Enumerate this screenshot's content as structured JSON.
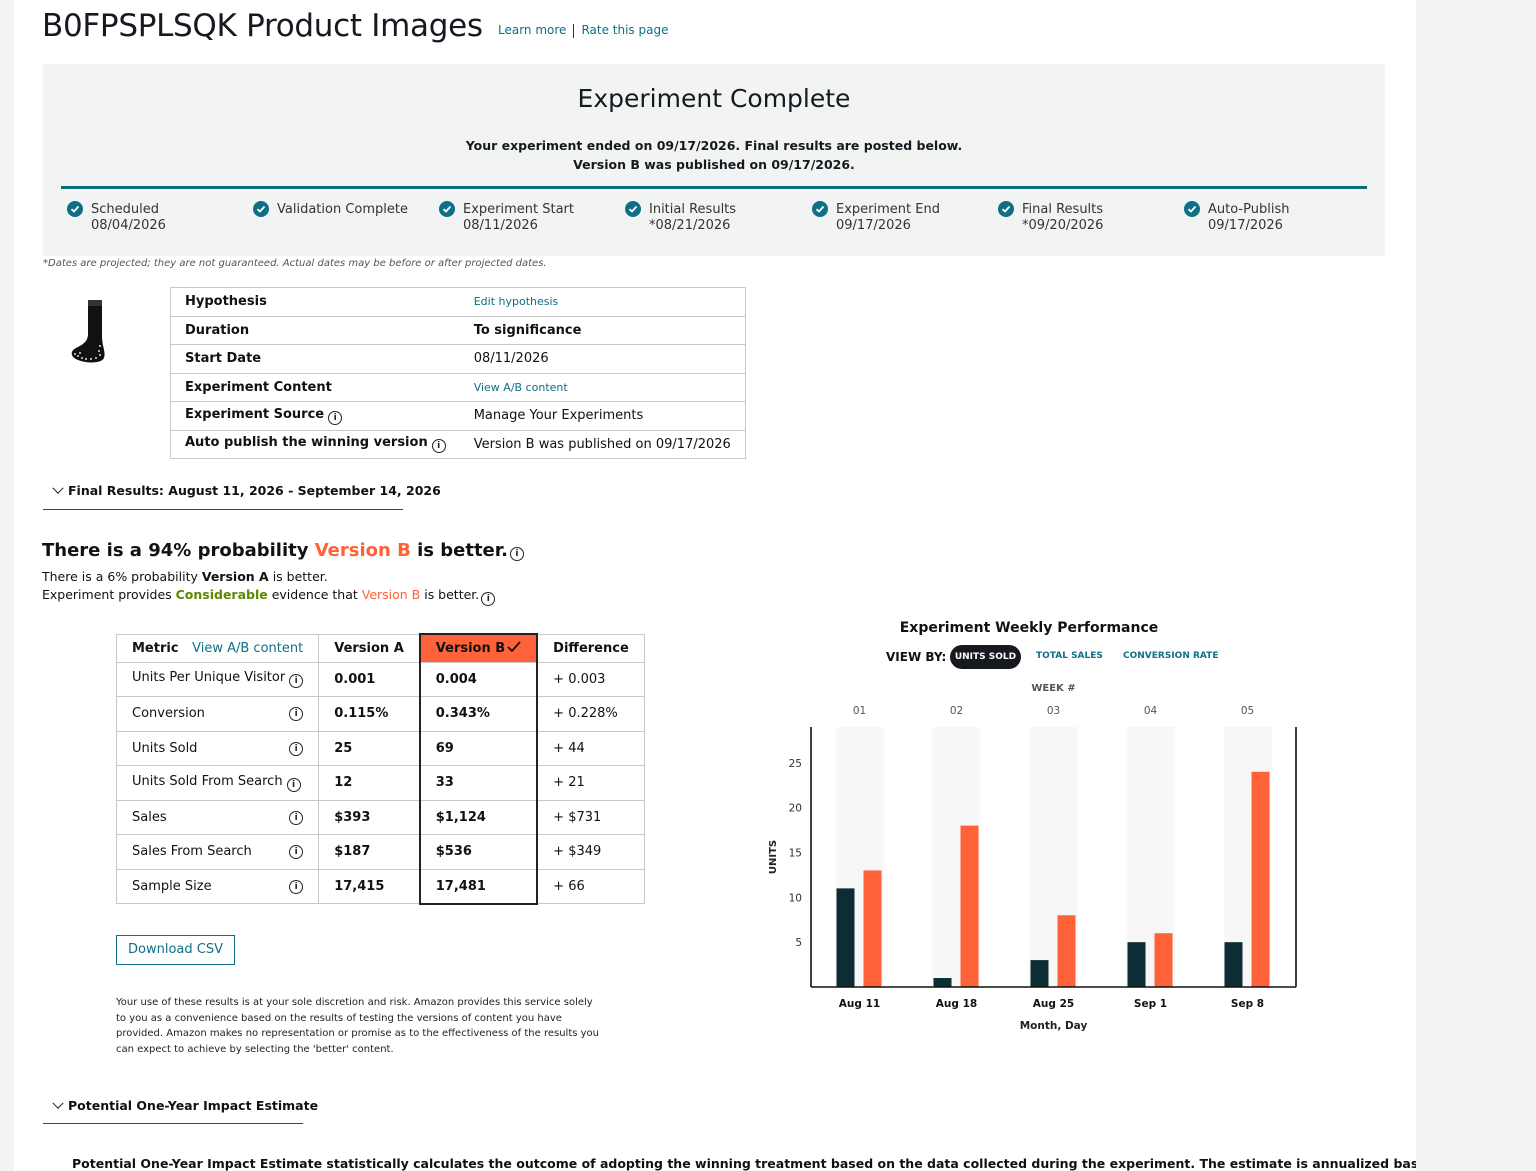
{
  "header": {
    "title": "B0FPSPLSQK Product Images",
    "learn_more": "Learn more",
    "rate_page": "Rate this page"
  },
  "status": {
    "title": "Experiment Complete",
    "line1": "Your experiment ended on 09/17/2026. Final results are posted below.",
    "line2": "Version B was published on 09/17/2026.",
    "steps": [
      {
        "label": "Scheduled",
        "date": "08/04/2026"
      },
      {
        "label": "Validation Complete",
        "date": ""
      },
      {
        "label": "Experiment Start",
        "date": "08/11/2026"
      },
      {
        "label": "Initial Results",
        "date": "*08/21/2026"
      },
      {
        "label": "Experiment End",
        "date": "09/17/2026"
      },
      {
        "label": "Final Results",
        "date": "*09/20/2026"
      },
      {
        "label": "Auto-Publish",
        "date": "09/17/2026"
      }
    ],
    "note": "*Dates are projected; they are not guaranteed. Actual dates may be before or after projected dates."
  },
  "details": {
    "hypothesis_label": "Hypothesis",
    "hypothesis_value": "Edit hypothesis",
    "duration_label": "Duration",
    "duration_value": "To significance",
    "start_label": "Start Date",
    "start_value": "08/11/2026",
    "content_label": "Experiment Content",
    "content_value": "View A/B content",
    "source_label": "Experiment Source",
    "source_value": "Manage Your Experiments",
    "autopub_label": "Auto publish the winning version",
    "autopub_value": "Version B was published on 09/17/2026"
  },
  "final_results": {
    "header": "Final Results: August 11, 2026 - September 14, 2026",
    "prob_pre": "There is a 94% probability ",
    "prob_version": "Version B",
    "prob_post": " is better.",
    "line2_pre": "There is a 6% probability ",
    "line2_version": "Version A",
    "line2_post": " is better.",
    "line3_pre": "Experiment provides ",
    "line3_strength": "Considerable",
    "line3_mid": " evidence that ",
    "line3_version": "Version B",
    "line3_post": " is better."
  },
  "metrics": {
    "headers": {
      "metric": "Metric",
      "view_link": "View A/B content",
      "version_a": "Version A",
      "version_b": "Version B",
      "difference": "Difference"
    },
    "rows": [
      {
        "name": "Units Per Unique Visitor",
        "a": "0.001",
        "b": "0.004",
        "diff": "+ 0.003"
      },
      {
        "name": "Conversion",
        "a": "0.115%",
        "b": "0.343%",
        "diff": "+ 0.228%"
      },
      {
        "name": "Units Sold",
        "a": "25",
        "b": "69",
        "diff": "+ 44"
      },
      {
        "name": "Units Sold From Search",
        "a": "12",
        "b": "33",
        "diff": "+ 21"
      },
      {
        "name": "Sales",
        "a": "$393",
        "b": "$1,124",
        "diff": "+ $731"
      },
      {
        "name": "Sales From Search",
        "a": "$187",
        "b": "$536",
        "diff": "+ $349"
      },
      {
        "name": "Sample Size",
        "a": "17,415",
        "b": "17,481",
        "diff": "+ 66"
      }
    ]
  },
  "download_csv": "Download CSV",
  "disclaimer": "Your use of these results is at your sole discretion and risk. Amazon provides this service solely to you as a convenience based on the results of testing the versions of content you have provided. Amazon makes no representation or promise as to the effectiveness of the results you can expect to achieve by selecting the 'better' content.",
  "impact": {
    "header": "Potential One-Year Impact Estimate",
    "text": "Potential One-Year Impact Estimate statistically calculates the outcome of adopting the winning treatment based on the data collected during the experiment. The estimate is annualized based on the"
  },
  "chart_header": {
    "title": "Experiment Weekly Performance",
    "view_by": "VIEW BY:",
    "options": [
      "UNITS SOLD",
      "TOTAL SALES",
      "CONVERSION RATE"
    ]
  },
  "colors": {
    "version_a": "#0b2d33",
    "version_b": "#ff6138",
    "accent": "#0f6f86"
  },
  "chart_data": {
    "type": "bar",
    "top_axis_label": "WEEK #",
    "weeks": [
      "01",
      "02",
      "03",
      "04",
      "05"
    ],
    "categories": [
      "Aug 11",
      "Aug 18",
      "Aug 25",
      "Sep 1",
      "Sep 8"
    ],
    "series": [
      {
        "values": [
          11,
          1,
          3,
          5,
          5
        ],
        "color": "#0b2d33"
      },
      {
        "values": [
          13,
          18,
          8,
          6,
          24
        ],
        "color": "#ff6138"
      }
    ],
    "ylabel": "UNITS",
    "xlabel": "Month, Day",
    "yticks": [
      5,
      10,
      15,
      20,
      25
    ],
    "ylim": [
      0,
      29
    ]
  }
}
